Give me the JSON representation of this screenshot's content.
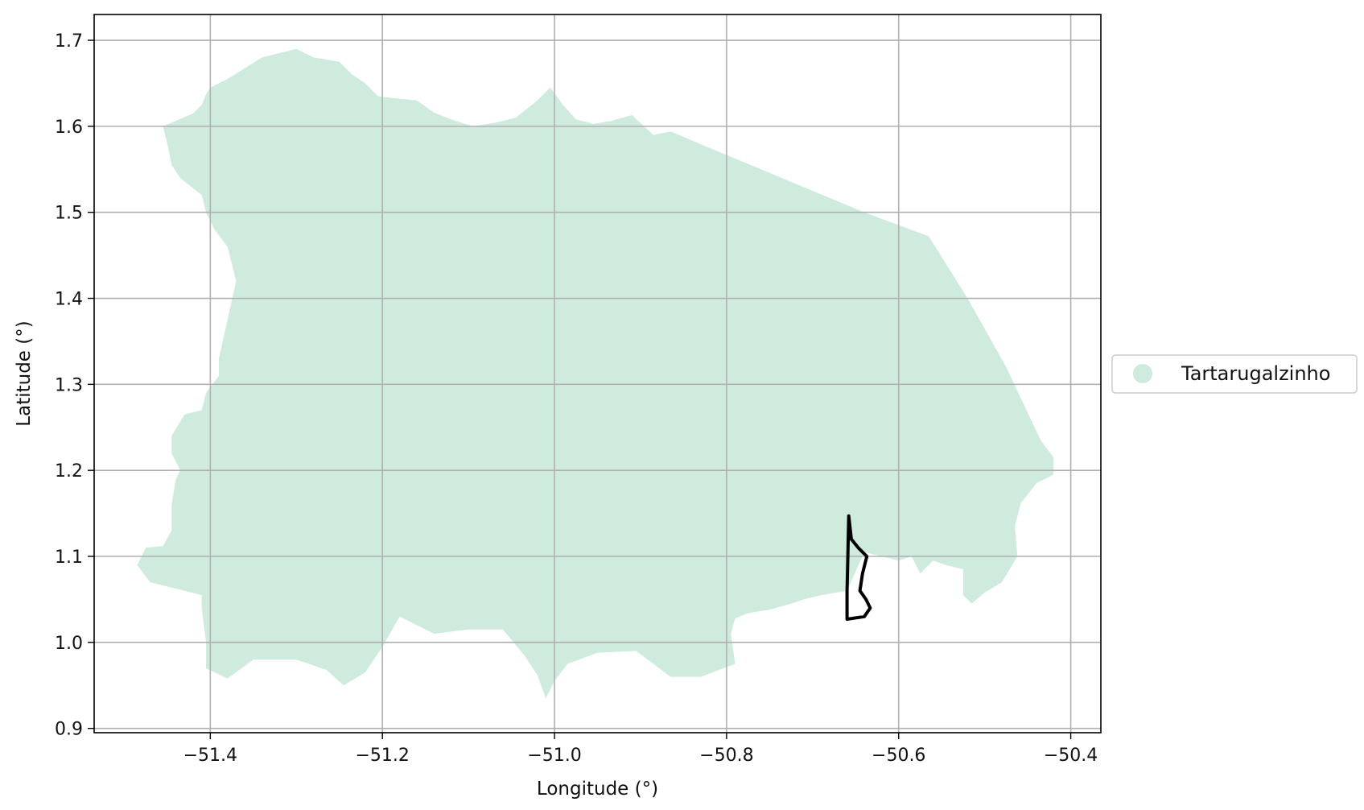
{
  "chart_data": {
    "type": "map",
    "xlabel": "Longitude (°)",
    "ylabel": "Latitude (°)",
    "xlim": [
      -51.535,
      -50.365
    ],
    "ylim": [
      0.895,
      1.73
    ],
    "x_ticks": [
      {
        "value": -51.4,
        "label": "−51.4"
      },
      {
        "value": -51.2,
        "label": "−51.2"
      },
      {
        "value": -51.0,
        "label": "−51.0"
      },
      {
        "value": -50.8,
        "label": "−50.8"
      },
      {
        "value": -50.6,
        "label": "−50.6"
      },
      {
        "value": -50.4,
        "label": "−50.4"
      }
    ],
    "y_ticks": [
      {
        "value": 0.9,
        "label": "0.9"
      },
      {
        "value": 1.0,
        "label": "1.0"
      },
      {
        "value": 1.1,
        "label": "1.1"
      },
      {
        "value": 1.2,
        "label": "1.2"
      },
      {
        "value": 1.3,
        "label": "1.3"
      },
      {
        "value": 1.4,
        "label": "1.4"
      },
      {
        "value": 1.5,
        "label": "1.5"
      },
      {
        "value": 1.6,
        "label": "1.6"
      },
      {
        "value": 1.7,
        "label": "1.7"
      }
    ],
    "grid": true,
    "legend": {
      "placement": "outside-right-center",
      "entries": [
        {
          "label": "Tartarugalzinho",
          "color": "#cfebde"
        }
      ]
    },
    "regions": [
      {
        "name": "Tartarugalzinho",
        "fill": "#cfebde",
        "boundary": [
          [
            -51.455,
            1.6
          ],
          [
            -51.42,
            1.615
          ],
          [
            -51.41,
            1.625
          ],
          [
            -51.405,
            1.637
          ],
          [
            -51.4,
            1.645
          ],
          [
            -51.38,
            1.655
          ],
          [
            -51.34,
            1.68
          ],
          [
            -51.3,
            1.69
          ],
          [
            -51.28,
            1.68
          ],
          [
            -51.25,
            1.675
          ],
          [
            -51.235,
            1.66
          ],
          [
            -51.22,
            1.65
          ],
          [
            -51.205,
            1.635
          ],
          [
            -51.18,
            1.632
          ],
          [
            -51.16,
            1.63
          ],
          [
            -51.14,
            1.616
          ],
          [
            -51.12,
            1.608
          ],
          [
            -51.095,
            1.6
          ],
          [
            -51.07,
            1.604
          ],
          [
            -51.045,
            1.61
          ],
          [
            -51.02,
            1.63
          ],
          [
            -51.005,
            1.645
          ],
          [
            -50.99,
            1.625
          ],
          [
            -50.975,
            1.608
          ],
          [
            -50.955,
            1.603
          ],
          [
            -50.935,
            1.606
          ],
          [
            -50.91,
            1.613
          ],
          [
            -50.885,
            1.59
          ],
          [
            -50.865,
            1.594
          ],
          [
            -50.82,
            1.575
          ],
          [
            -50.76,
            1.55
          ],
          [
            -50.7,
            1.525
          ],
          [
            -50.64,
            1.5
          ],
          [
            -50.565,
            1.472
          ],
          [
            -50.52,
            1.4
          ],
          [
            -50.475,
            1.32
          ],
          [
            -50.435,
            1.235
          ],
          [
            -50.42,
            1.215
          ],
          [
            -50.42,
            1.195
          ],
          [
            -50.44,
            1.185
          ],
          [
            -50.458,
            1.162
          ],
          [
            -50.465,
            1.135
          ],
          [
            -50.462,
            1.1
          ],
          [
            -50.48,
            1.07
          ],
          [
            -50.5,
            1.058
          ],
          [
            -50.515,
            1.045
          ],
          [
            -50.525,
            1.055
          ],
          [
            -50.525,
            1.085
          ],
          [
            -50.545,
            1.09
          ],
          [
            -50.56,
            1.095
          ],
          [
            -50.575,
            1.08
          ],
          [
            -50.585,
            1.1
          ],
          [
            -50.6,
            1.095
          ],
          [
            -50.64,
            1.105
          ],
          [
            -50.66,
            1.06
          ],
          [
            -50.69,
            1.055
          ],
          [
            -50.71,
            1.05
          ],
          [
            -50.725,
            1.045
          ],
          [
            -50.75,
            1.038
          ],
          [
            -50.775,
            1.034
          ],
          [
            -50.79,
            1.028
          ],
          [
            -50.795,
            1.01
          ],
          [
            -50.79,
            0.975
          ],
          [
            -50.83,
            0.96
          ],
          [
            -50.865,
            0.96
          ],
          [
            -50.885,
            0.975
          ],
          [
            -50.905,
            0.99
          ],
          [
            -50.95,
            0.988
          ],
          [
            -50.985,
            0.975
          ],
          [
            -51.0,
            0.955
          ],
          [
            -51.01,
            0.935
          ],
          [
            -51.02,
            0.962
          ],
          [
            -51.035,
            0.985
          ],
          [
            -51.06,
            1.015
          ],
          [
            -51.1,
            1.015
          ],
          [
            -51.14,
            1.01
          ],
          [
            -51.18,
            1.03
          ],
          [
            -51.2,
            0.995
          ],
          [
            -51.22,
            0.965
          ],
          [
            -51.245,
            0.95
          ],
          [
            -51.265,
            0.968
          ],
          [
            -51.3,
            0.98
          ],
          [
            -51.35,
            0.98
          ],
          [
            -51.38,
            0.958
          ],
          [
            -51.405,
            0.97
          ],
          [
            -51.405,
            1.0
          ],
          [
            -51.41,
            1.04
          ],
          [
            -51.41,
            1.055
          ],
          [
            -51.45,
            1.065
          ],
          [
            -51.47,
            1.07
          ],
          [
            -51.485,
            1.09
          ],
          [
            -51.475,
            1.11
          ],
          [
            -51.455,
            1.112
          ],
          [
            -51.445,
            1.13
          ],
          [
            -51.445,
            1.16
          ],
          [
            -51.44,
            1.19
          ],
          [
            -51.435,
            1.2
          ],
          [
            -51.445,
            1.22
          ],
          [
            -51.445,
            1.24
          ],
          [
            -51.43,
            1.265
          ],
          [
            -51.41,
            1.27
          ],
          [
            -51.405,
            1.29
          ],
          [
            -51.39,
            1.31
          ],
          [
            -51.39,
            1.33
          ],
          [
            -51.38,
            1.375
          ],
          [
            -51.37,
            1.42
          ],
          [
            -51.375,
            1.44
          ],
          [
            -51.38,
            1.46
          ],
          [
            -51.395,
            1.48
          ],
          [
            -51.405,
            1.5
          ],
          [
            -51.41,
            1.52
          ],
          [
            -51.435,
            1.54
          ],
          [
            -51.445,
            1.555
          ],
          [
            -51.45,
            1.58
          ],
          [
            -51.455,
            1.6
          ]
        ]
      }
    ],
    "outline": {
      "stroke": "#000000",
      "points": [
        [
          -50.658,
          1.147
        ],
        [
          -50.655,
          1.12
        ],
        [
          -50.647,
          1.11
        ],
        [
          -50.637,
          1.1
        ],
        [
          -50.642,
          1.08
        ],
        [
          -50.645,
          1.06
        ],
        [
          -50.638,
          1.05
        ],
        [
          -50.633,
          1.04
        ],
        [
          -50.64,
          1.03
        ],
        [
          -50.66,
          1.027
        ],
        [
          -50.66,
          1.06
        ],
        [
          -50.659,
          1.1
        ],
        [
          -50.658,
          1.147
        ]
      ]
    }
  }
}
